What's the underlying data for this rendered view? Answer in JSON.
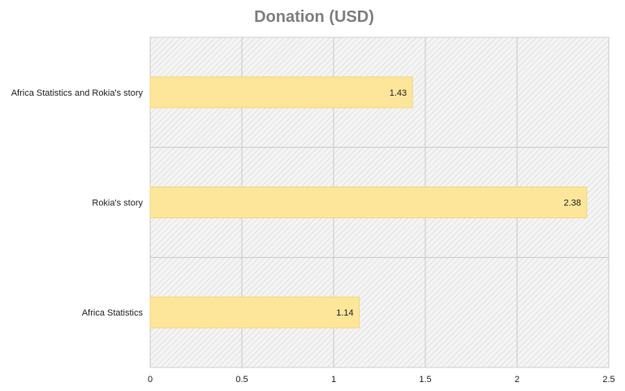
{
  "chart_data": {
    "type": "bar",
    "orientation": "horizontal",
    "title": "Donation (USD)",
    "xlabel": "",
    "ylabel": "",
    "categories": [
      "Africa Statistics and Rokia's story",
      "Rokia's story",
      "Africa Statistics"
    ],
    "values": [
      1.43,
      2.38,
      1.14
    ],
    "data_labels": [
      "1.43",
      "2.38",
      "1.14"
    ],
    "xlim": [
      0,
      2.5
    ],
    "x_ticks": [
      "0",
      "0.5",
      "1",
      "1.5",
      "2",
      "2.5"
    ],
    "grid": true,
    "legend": "none",
    "bar_color": "#fde59a",
    "bar_border_color": "#f3d67a",
    "plot_background": "hatched light gray"
  }
}
